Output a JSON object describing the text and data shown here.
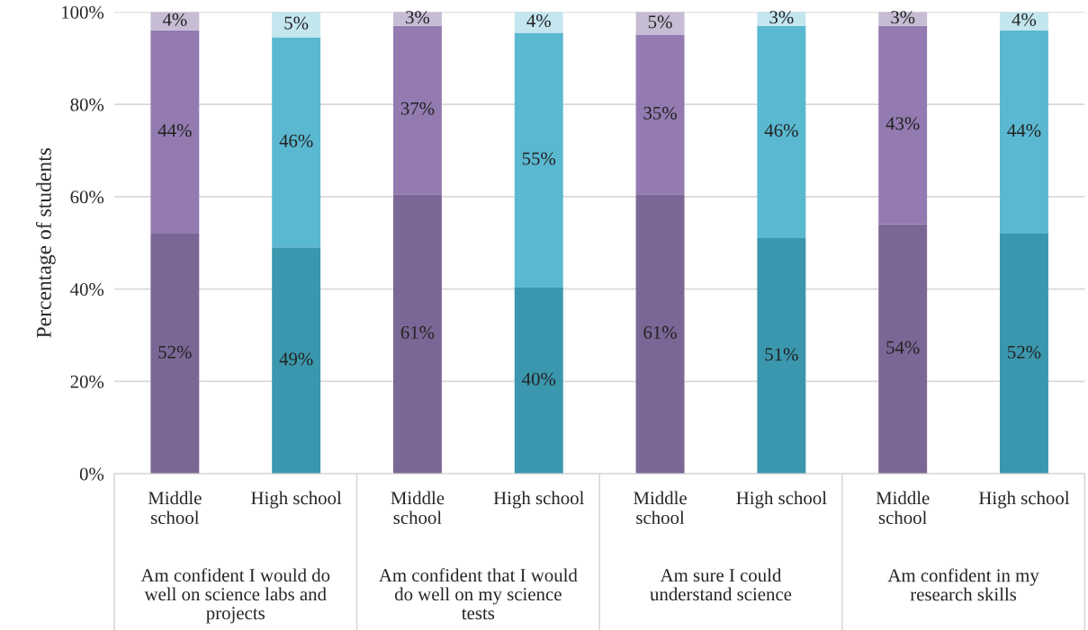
{
  "chart_data": {
    "type": "bar",
    "stacked": true,
    "ylabel": "Percentage of students",
    "categories": [
      "Middle\nschool",
      "High school",
      "Middle\nschool",
      "High school",
      "Middle\nschool",
      "High school",
      "Middle\nschool",
      "High school"
    ],
    "series": [
      {
        "values": [
          52,
          49,
          60.5,
          40.3,
          60.5,
          51,
          54,
          52
        ],
        "colors": [
          "#7b6795",
          "#3b97ad",
          "#7b6795",
          "#3b97ad",
          "#7b6795",
          "#3b97ad",
          "#7b6795",
          "#3b97ad"
        ],
        "value_labels": [
          "52%",
          "49%",
          "61%",
          "40%",
          "61%",
          "51%",
          "54%",
          "52%"
        ]
      },
      {
        "values": [
          44,
          45.5,
          36.5,
          55.2,
          34.5,
          46,
          43,
          44
        ],
        "colors": [
          "#937bb1",
          "#5bb8d1",
          "#937bb1",
          "#5bb8d1",
          "#937bb1",
          "#5bb8d1",
          "#937bb1",
          "#5bb8d1"
        ],
        "value_labels": [
          "44%",
          "46%",
          "37%",
          "55%",
          "35%",
          "46%",
          "43%",
          "44%"
        ]
      },
      {
        "values": [
          4,
          5.5,
          3,
          4.5,
          5,
          3,
          3,
          4
        ],
        "colors": [
          "#c6bcd4",
          "#c3e6ef",
          "#c6bcd4",
          "#c3e6ef",
          "#c6bcd4",
          "#c3e6ef",
          "#c6bcd4",
          "#c3e6ef"
        ],
        "value_labels": [
          "4%",
          "5%",
          "3%",
          "4%",
          "5%",
          "3%",
          "3%",
          "4%"
        ]
      }
    ],
    "annotations": [
      "Am confident I would do\nwell on science labs and\nprojects",
      "Am confident that I would\ndo well on my science\ntests",
      "Am sure I could\nunderstand science",
      "Am confident in my\nresearch skills"
    ],
    "ylim": [
      0,
      100
    ],
    "yticks": [
      {
        "value": 0,
        "label": "0%"
      },
      {
        "value": 20,
        "label": "20%"
      },
      {
        "value": 40,
        "label": "40%"
      },
      {
        "value": 60,
        "label": "60%"
      },
      {
        "value": 80,
        "label": "80%"
      },
      {
        "value": 100,
        "label": "100%"
      }
    ],
    "grid": "y",
    "legend": false
  }
}
